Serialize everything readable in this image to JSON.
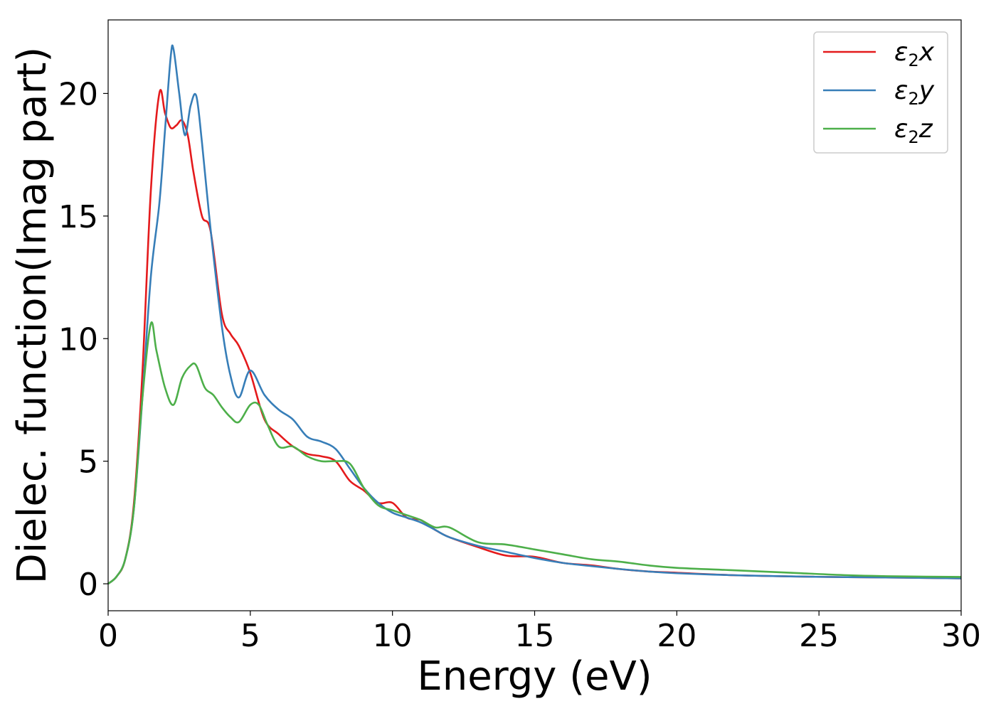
{
  "chart_data": {
    "type": "line",
    "title": "",
    "xlabel": "Energy (eV)",
    "ylabel": "Dielec. function(Imag part)",
    "xlim": [
      0,
      30
    ],
    "ylim": [
      -1.1,
      23
    ],
    "xticks": [
      0,
      5,
      10,
      15,
      20,
      25,
      30
    ],
    "yticks": [
      0,
      5,
      10,
      15,
      20
    ],
    "grid": false,
    "legend_position": "top-right",
    "series": [
      {
        "name": "ε2x",
        "legend": {
          "symbol": "ε",
          "sub": "2",
          "var": "x"
        },
        "color": "#e41a1c",
        "x": [
          0,
          0.3,
          0.6,
          0.9,
          1.2,
          1.5,
          1.8,
          2.0,
          2.2,
          2.4,
          2.6,
          2.8,
          3.0,
          3.3,
          3.6,
          4.0,
          4.3,
          4.6,
          5.0,
          5.5,
          6.0,
          6.5,
          7.0,
          7.5,
          8.0,
          8.5,
          9.0,
          9.5,
          10.0,
          10.5,
          11.0,
          11.5,
          12.0,
          13.0,
          14.0,
          15.0,
          16.0,
          17.0,
          18.0,
          19.0,
          20.0,
          22.0,
          24.0,
          26.0,
          28.0,
          30.0
        ],
        "y": [
          0,
          0.3,
          1.0,
          3.2,
          8.5,
          16.0,
          20.0,
          19.2,
          18.6,
          18.7,
          18.9,
          18.3,
          16.8,
          15.0,
          14.4,
          11.0,
          10.2,
          9.7,
          8.6,
          6.7,
          6.1,
          5.6,
          5.3,
          5.2,
          5.0,
          4.2,
          3.8,
          3.3,
          3.3,
          2.7,
          2.6,
          2.2,
          1.9,
          1.5,
          1.15,
          1.1,
          0.85,
          0.75,
          0.6,
          0.5,
          0.45,
          0.35,
          0.3,
          0.27,
          0.25,
          0.22
        ]
      },
      {
        "name": "ε2y",
        "legend": {
          "symbol": "ε",
          "sub": "2",
          "var": "y"
        },
        "color": "#377eb8",
        "x": [
          0,
          0.3,
          0.6,
          0.9,
          1.2,
          1.5,
          1.8,
          2.0,
          2.2,
          2.3,
          2.5,
          2.7,
          2.9,
          3.1,
          3.3,
          3.6,
          4.0,
          4.3,
          4.6,
          5.0,
          5.5,
          6.0,
          6.5,
          7.0,
          7.5,
          8.0,
          8.5,
          9.0,
          9.5,
          10.0,
          10.5,
          11.0,
          11.5,
          12.0,
          13.0,
          14.0,
          15.0,
          16.0,
          17.0,
          18.0,
          19.0,
          20.0,
          22.0,
          24.0,
          26.0,
          28.0,
          30.0
        ],
        "y": [
          0,
          0.3,
          1.0,
          3.0,
          7.5,
          12.5,
          15.5,
          18.5,
          21.5,
          21.8,
          20.0,
          18.3,
          19.5,
          19.9,
          18.0,
          14.5,
          10.5,
          8.5,
          7.6,
          8.7,
          7.7,
          7.1,
          6.7,
          6.0,
          5.8,
          5.5,
          4.7,
          3.9,
          3.3,
          2.9,
          2.7,
          2.5,
          2.2,
          1.9,
          1.55,
          1.3,
          1.05,
          0.85,
          0.72,
          0.6,
          0.5,
          0.43,
          0.35,
          0.3,
          0.27,
          0.25,
          0.22
        ]
      },
      {
        "name": "ε2z",
        "legend": {
          "symbol": "ε",
          "sub": "2",
          "var": "z"
        },
        "color": "#4daf4a",
        "x": [
          0,
          0.3,
          0.6,
          0.9,
          1.2,
          1.5,
          1.7,
          2.0,
          2.3,
          2.6,
          2.9,
          3.1,
          3.4,
          3.7,
          4.0,
          4.3,
          4.6,
          5.0,
          5.3,
          5.6,
          6.0,
          6.5,
          7.0,
          7.5,
          8.0,
          8.5,
          9.0,
          9.5,
          10.0,
          10.5,
          11.0,
          11.5,
          12.0,
          13.0,
          14.0,
          15.0,
          16.0,
          17.0,
          18.0,
          19.0,
          20.0,
          22.0,
          24.0,
          26.0,
          28.0,
          30.0
        ],
        "y": [
          0,
          0.3,
          1.0,
          3.0,
          7.5,
          10.6,
          9.5,
          8.0,
          7.3,
          8.4,
          8.9,
          8.9,
          8.0,
          7.7,
          7.2,
          6.8,
          6.6,
          7.3,
          7.3,
          6.5,
          5.6,
          5.6,
          5.2,
          5.0,
          5.0,
          4.9,
          3.9,
          3.2,
          3.0,
          2.8,
          2.6,
          2.3,
          2.3,
          1.7,
          1.6,
          1.4,
          1.2,
          1.0,
          0.9,
          0.75,
          0.65,
          0.55,
          0.45,
          0.35,
          0.3,
          0.28
        ]
      }
    ]
  }
}
